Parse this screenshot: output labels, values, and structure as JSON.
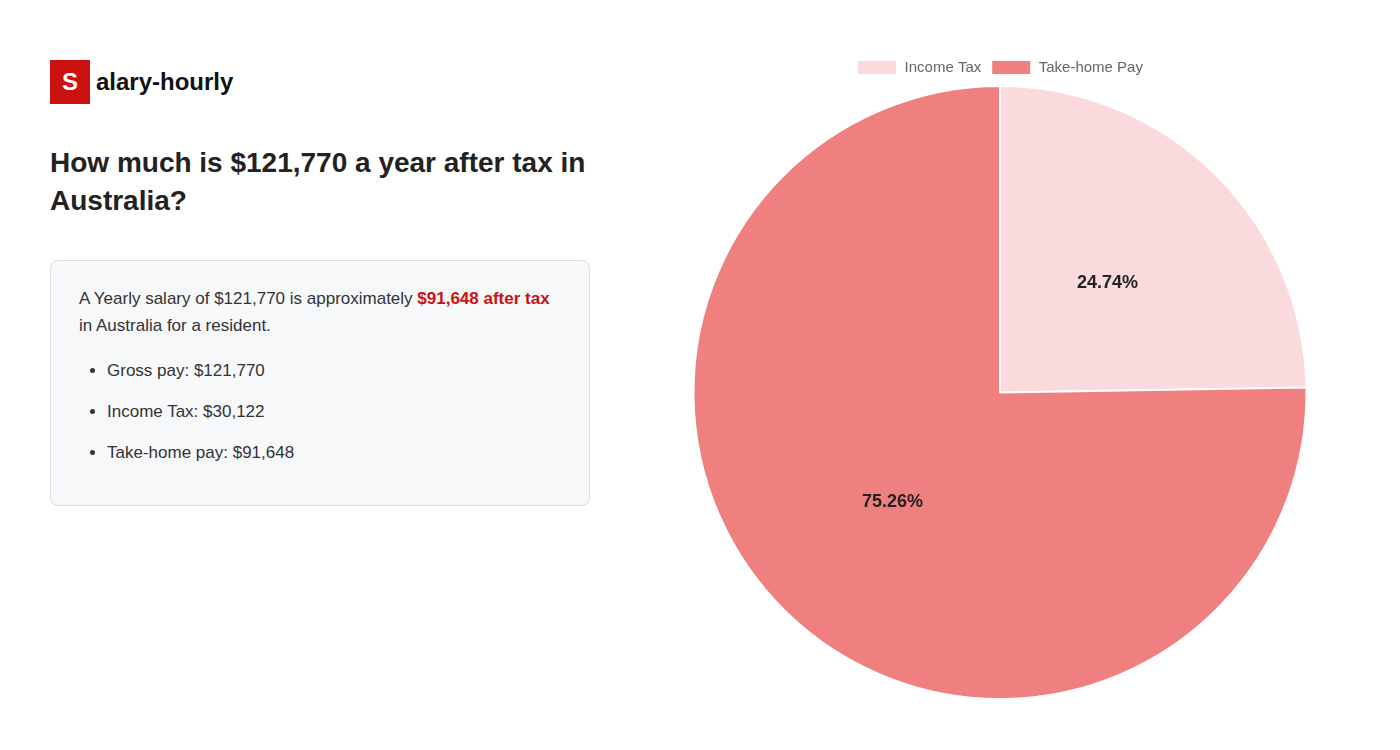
{
  "chart_data": {
    "type": "pie",
    "title": "How much is $121,770 a year after tax in\nAustralia?",
    "annotations": [
      [
        {
          "text": "S",
          "color": "#cc1111"
        },
        {
          "text": "alary-hourly"
        }
      ],
      [
        {
          "text": "A Yearly salary of $121,770 is approximately "
        },
        {
          "text": "$91,648 after tax",
          "color": "#cc1111"
        }
      ],
      [
        {
          "text": "in Australia for a resident."
        }
      ],
      [
        {
          "text": "Gross pay: $121,770"
        }
      ],
      [
        {
          "text": "Income Tax: $30,122"
        }
      ],
      [
        {
          "text": "Take-home pay: $91,648"
        }
      ]
    ],
    "categories": [
      "Income Tax",
      "Take-home Pay"
    ],
    "values": [
      24.74,
      75.26
    ],
    "value_labels": [
      "24.74%",
      "75.26%"
    ],
    "colors": [
      "#fadadd",
      "#f08080"
    ],
    "data_labels": true,
    "legend": "top"
  }
}
